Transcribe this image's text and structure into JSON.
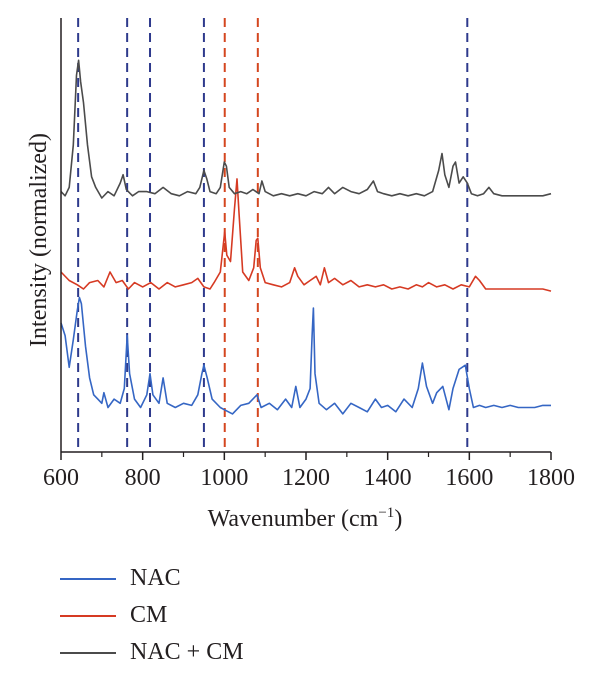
{
  "chart_data": {
    "type": "line",
    "title": "",
    "xlabel": "Wavenumber (cm",
    "xlabel_sup": "−1",
    "xlabel_close": ")",
    "ylabel": "Intensity (normalized)",
    "xlim": [
      600,
      1800
    ],
    "xticks": [
      "600",
      "800",
      "1000",
      "1200",
      "1400",
      "1600",
      "1800"
    ],
    "yticks": [],
    "grid": false,
    "legend_position": "below",
    "vlines": [
      {
        "x": 642,
        "color": "#2e3a8c"
      },
      {
        "x": 762,
        "color": "#2e3a8c"
      },
      {
        "x": 818,
        "color": "#2e3a8c"
      },
      {
        "x": 950,
        "color": "#2e3a8c"
      },
      {
        "x": 1001,
        "color": "#d4461f"
      },
      {
        "x": 1082,
        "color": "#d4461f"
      },
      {
        "x": 1595,
        "color": "#2e3a8c"
      }
    ],
    "series": [
      {
        "name": "NAC",
        "color": "#3566c4",
        "points": [
          [
            600,
            0.86
          ],
          [
            610,
            0.8
          ],
          [
            620,
            0.65
          ],
          [
            630,
            0.78
          ],
          [
            640,
            0.92
          ],
          [
            645,
            0.98
          ],
          [
            650,
            0.95
          ],
          [
            660,
            0.75
          ],
          [
            670,
            0.6
          ],
          [
            680,
            0.52
          ],
          [
            690,
            0.5
          ],
          [
            700,
            0.48
          ],
          [
            705,
            0.53
          ],
          [
            715,
            0.46
          ],
          [
            730,
            0.5
          ],
          [
            745,
            0.48
          ],
          [
            755,
            0.55
          ],
          [
            762,
            0.8
          ],
          [
            768,
            0.62
          ],
          [
            780,
            0.5
          ],
          [
            795,
            0.46
          ],
          [
            810,
            0.52
          ],
          [
            818,
            0.62
          ],
          [
            825,
            0.52
          ],
          [
            840,
            0.48
          ],
          [
            850,
            0.6
          ],
          [
            860,
            0.48
          ],
          [
            880,
            0.46
          ],
          [
            900,
            0.48
          ],
          [
            920,
            0.47
          ],
          [
            935,
            0.52
          ],
          [
            945,
            0.62
          ],
          [
            950,
            0.66
          ],
          [
            958,
            0.6
          ],
          [
            970,
            0.5
          ],
          [
            990,
            0.46
          ],
          [
            1000,
            0.45
          ],
          [
            1020,
            0.43
          ],
          [
            1040,
            0.47
          ],
          [
            1060,
            0.48
          ],
          [
            1080,
            0.52
          ],
          [
            1090,
            0.46
          ],
          [
            1110,
            0.48
          ],
          [
            1130,
            0.45
          ],
          [
            1150,
            0.5
          ],
          [
            1165,
            0.46
          ],
          [
            1175,
            0.56
          ],
          [
            1185,
            0.46
          ],
          [
            1200,
            0.5
          ],
          [
            1210,
            0.55
          ],
          [
            1215,
            0.8
          ],
          [
            1218,
            0.93
          ],
          [
            1222,
            0.62
          ],
          [
            1232,
            0.48
          ],
          [
            1250,
            0.45
          ],
          [
            1270,
            0.48
          ],
          [
            1290,
            0.43
          ],
          [
            1310,
            0.48
          ],
          [
            1330,
            0.46
          ],
          [
            1350,
            0.44
          ],
          [
            1370,
            0.5
          ],
          [
            1385,
            0.46
          ],
          [
            1400,
            0.47
          ],
          [
            1420,
            0.44
          ],
          [
            1440,
            0.5
          ],
          [
            1460,
            0.46
          ],
          [
            1475,
            0.55
          ],
          [
            1485,
            0.67
          ],
          [
            1495,
            0.56
          ],
          [
            1510,
            0.48
          ],
          [
            1520,
            0.53
          ],
          [
            1535,
            0.56
          ],
          [
            1550,
            0.45
          ],
          [
            1560,
            0.55
          ],
          [
            1575,
            0.64
          ],
          [
            1590,
            0.66
          ],
          [
            1600,
            0.55
          ],
          [
            1610,
            0.46
          ],
          [
            1625,
            0.47
          ],
          [
            1640,
            0.46
          ],
          [
            1660,
            0.47
          ],
          [
            1680,
            0.46
          ],
          [
            1700,
            0.47
          ],
          [
            1720,
            0.46
          ],
          [
            1740,
            0.46
          ],
          [
            1760,
            0.46
          ],
          [
            1780,
            0.47
          ],
          [
            1800,
            0.47
          ]
        ]
      },
      {
        "name": "CM",
        "color": "#d63a23",
        "points": [
          [
            600,
            1.1
          ],
          [
            620,
            1.06
          ],
          [
            640,
            1.04
          ],
          [
            655,
            1.02
          ],
          [
            670,
            1.05
          ],
          [
            690,
            1.06
          ],
          [
            705,
            1.03
          ],
          [
            720,
            1.1
          ],
          [
            735,
            1.05
          ],
          [
            750,
            1.06
          ],
          [
            765,
            1.02
          ],
          [
            780,
            1.05
          ],
          [
            800,
            1.03
          ],
          [
            820,
            1.05
          ],
          [
            840,
            1.02
          ],
          [
            860,
            1.05
          ],
          [
            880,
            1.03
          ],
          [
            900,
            1.04
          ],
          [
            920,
            1.05
          ],
          [
            935,
            1.07
          ],
          [
            950,
            1.03
          ],
          [
            965,
            1.02
          ],
          [
            975,
            1.05
          ],
          [
            990,
            1.1
          ],
          [
            997,
            1.22
          ],
          [
            1001,
            1.29
          ],
          [
            1006,
            1.18
          ],
          [
            1015,
            1.15
          ],
          [
            1025,
            1.4
          ],
          [
            1031,
            1.54
          ],
          [
            1036,
            1.38
          ],
          [
            1045,
            1.1
          ],
          [
            1060,
            1.06
          ],
          [
            1072,
            1.12
          ],
          [
            1078,
            1.25
          ],
          [
            1082,
            1.26
          ],
          [
            1088,
            1.12
          ],
          [
            1100,
            1.05
          ],
          [
            1120,
            1.04
          ],
          [
            1140,
            1.03
          ],
          [
            1160,
            1.05
          ],
          [
            1172,
            1.12
          ],
          [
            1180,
            1.08
          ],
          [
            1195,
            1.04
          ],
          [
            1210,
            1.06
          ],
          [
            1225,
            1.08
          ],
          [
            1235,
            1.04
          ],
          [
            1245,
            1.12
          ],
          [
            1255,
            1.05
          ],
          [
            1270,
            1.07
          ],
          [
            1290,
            1.04
          ],
          [
            1310,
            1.06
          ],
          [
            1330,
            1.03
          ],
          [
            1350,
            1.04
          ],
          [
            1370,
            1.03
          ],
          [
            1390,
            1.04
          ],
          [
            1410,
            1.02
          ],
          [
            1430,
            1.03
          ],
          [
            1450,
            1.02
          ],
          [
            1470,
            1.04
          ],
          [
            1485,
            1.03
          ],
          [
            1500,
            1.05
          ],
          [
            1520,
            1.03
          ],
          [
            1540,
            1.04
          ],
          [
            1560,
            1.02
          ],
          [
            1580,
            1.04
          ],
          [
            1600,
            1.03
          ],
          [
            1615,
            1.08
          ],
          [
            1625,
            1.06
          ],
          [
            1640,
            1.02
          ],
          [
            1660,
            1.02
          ],
          [
            1680,
            1.02
          ],
          [
            1700,
            1.02
          ],
          [
            1720,
            1.02
          ],
          [
            1740,
            1.02
          ],
          [
            1760,
            1.02
          ],
          [
            1780,
            1.02
          ],
          [
            1800,
            1.01
          ]
        ]
      },
      {
        "name": "NAC + CM",
        "color": "#4b4b4b",
        "points": [
          [
            600,
            1.48
          ],
          [
            610,
            1.46
          ],
          [
            620,
            1.5
          ],
          [
            630,
            1.7
          ],
          [
            638,
            2.03
          ],
          [
            643,
            2.1
          ],
          [
            648,
            2.0
          ],
          [
            655,
            1.9
          ],
          [
            665,
            1.7
          ],
          [
            675,
            1.55
          ],
          [
            685,
            1.5
          ],
          [
            700,
            1.45
          ],
          [
            715,
            1.48
          ],
          [
            730,
            1.46
          ],
          [
            745,
            1.52
          ],
          [
            752,
            1.56
          ],
          [
            760,
            1.49
          ],
          [
            775,
            1.46
          ],
          [
            790,
            1.48
          ],
          [
            810,
            1.48
          ],
          [
            830,
            1.47
          ],
          [
            850,
            1.5
          ],
          [
            870,
            1.47
          ],
          [
            890,
            1.46
          ],
          [
            910,
            1.48
          ],
          [
            930,
            1.47
          ],
          [
            940,
            1.5
          ],
          [
            950,
            1.58
          ],
          [
            957,
            1.54
          ],
          [
            965,
            1.48
          ],
          [
            980,
            1.47
          ],
          [
            990,
            1.5
          ],
          [
            1000,
            1.62
          ],
          [
            1005,
            1.6
          ],
          [
            1012,
            1.5
          ],
          [
            1025,
            1.47
          ],
          [
            1040,
            1.48
          ],
          [
            1055,
            1.47
          ],
          [
            1070,
            1.49
          ],
          [
            1085,
            1.47
          ],
          [
            1092,
            1.53
          ],
          [
            1100,
            1.48
          ],
          [
            1120,
            1.46
          ],
          [
            1140,
            1.47
          ],
          [
            1160,
            1.46
          ],
          [
            1180,
            1.47
          ],
          [
            1200,
            1.46
          ],
          [
            1220,
            1.48
          ],
          [
            1240,
            1.47
          ],
          [
            1255,
            1.5
          ],
          [
            1270,
            1.47
          ],
          [
            1290,
            1.5
          ],
          [
            1310,
            1.48
          ],
          [
            1330,
            1.47
          ],
          [
            1350,
            1.49
          ],
          [
            1365,
            1.53
          ],
          [
            1375,
            1.48
          ],
          [
            1390,
            1.47
          ],
          [
            1410,
            1.46
          ],
          [
            1430,
            1.47
          ],
          [
            1450,
            1.46
          ],
          [
            1470,
            1.47
          ],
          [
            1490,
            1.46
          ],
          [
            1510,
            1.48
          ],
          [
            1525,
            1.58
          ],
          [
            1533,
            1.66
          ],
          [
            1540,
            1.56
          ],
          [
            1550,
            1.5
          ],
          [
            1560,
            1.6
          ],
          [
            1566,
            1.62
          ],
          [
            1575,
            1.52
          ],
          [
            1585,
            1.55
          ],
          [
            1595,
            1.52
          ],
          [
            1605,
            1.47
          ],
          [
            1620,
            1.46
          ],
          [
            1635,
            1.47
          ],
          [
            1648,
            1.5
          ],
          [
            1660,
            1.47
          ],
          [
            1680,
            1.46
          ],
          [
            1700,
            1.46
          ],
          [
            1720,
            1.46
          ],
          [
            1740,
            1.46
          ],
          [
            1760,
            1.46
          ],
          [
            1780,
            1.46
          ],
          [
            1800,
            1.47
          ]
        ]
      }
    ]
  }
}
